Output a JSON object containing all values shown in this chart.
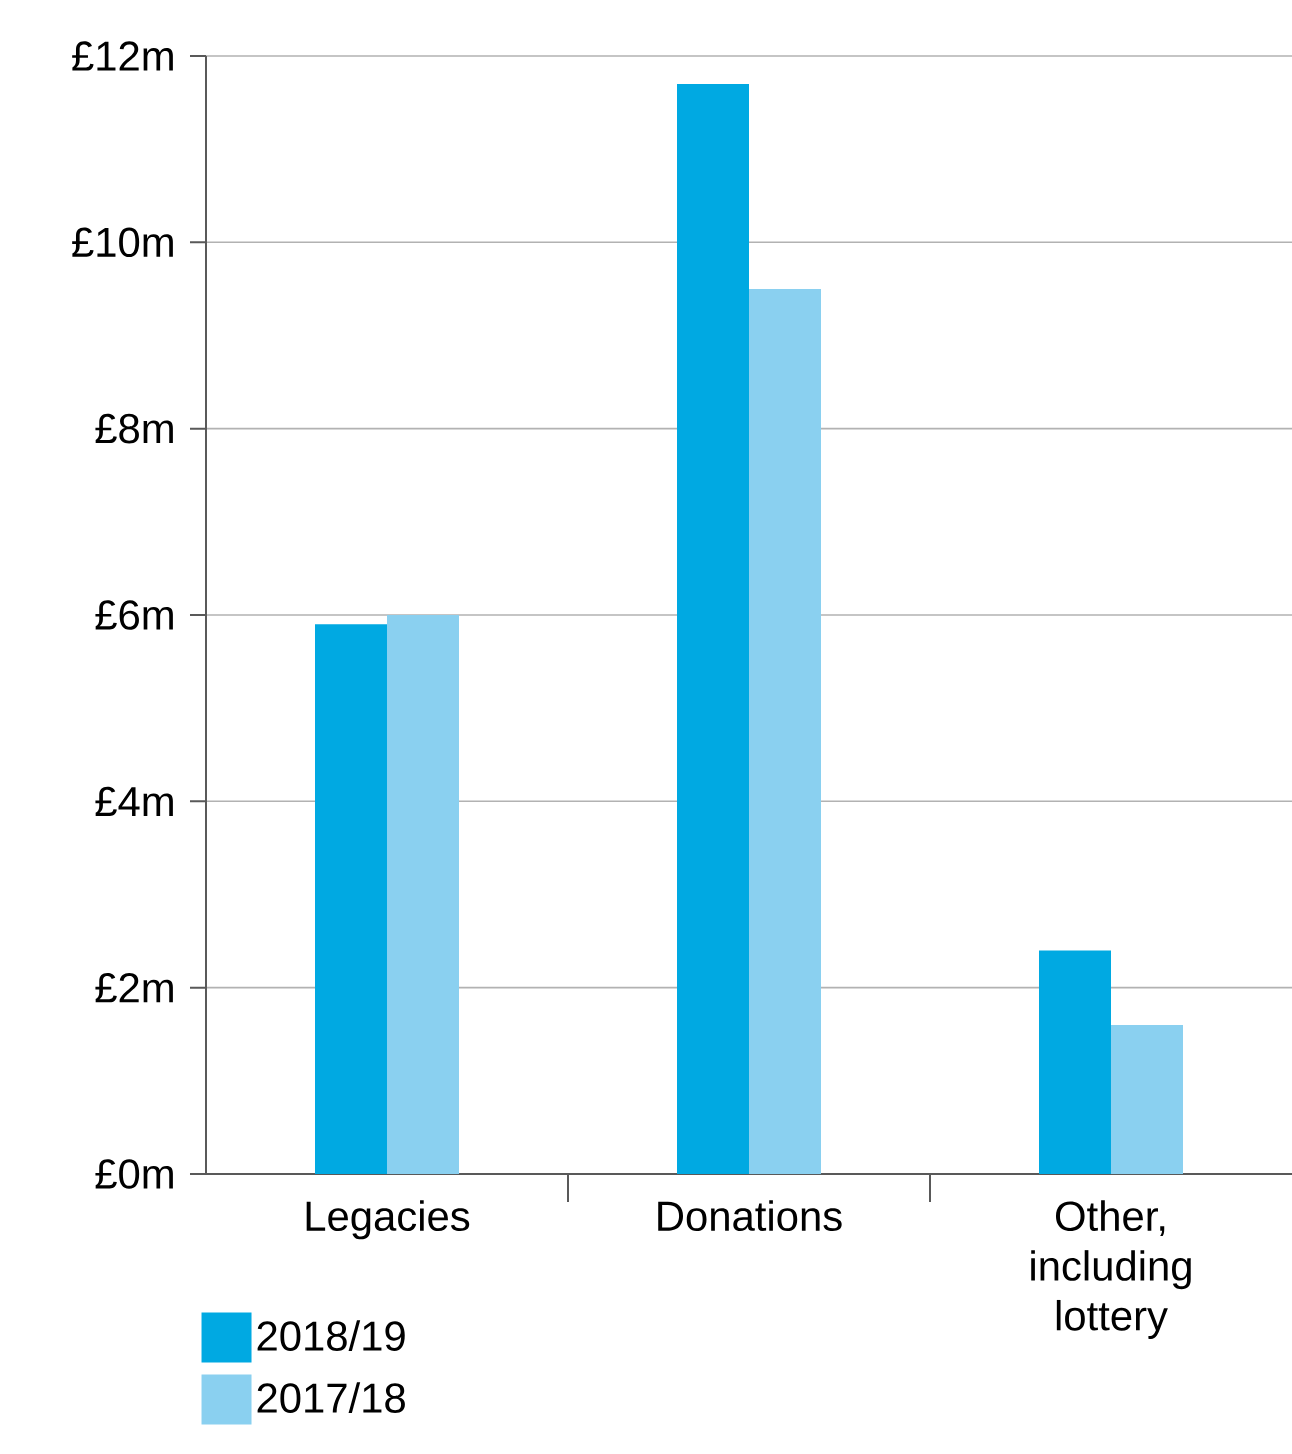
{
  "chart_data": {
    "type": "bar",
    "categories": [
      "Legacies",
      "Donations",
      "Other, including lottery"
    ],
    "series": [
      {
        "name": "2018/19",
        "color": "#00a9e2",
        "values": [
          5.9,
          11.7,
          2.4
        ]
      },
      {
        "name": "2017/18",
        "color": "#8ad0f0",
        "values": [
          6.0,
          9.5,
          1.6
        ]
      }
    ],
    "ylim": [
      0,
      12
    ],
    "yticks": [
      {
        "value": 0,
        "label": "£0m"
      },
      {
        "value": 2,
        "label": "£2m"
      },
      {
        "value": 4,
        "label": "£4m"
      },
      {
        "value": 6,
        "label": "£6m"
      },
      {
        "value": 8,
        "label": "£8m"
      },
      {
        "value": 10,
        "label": "£10m"
      },
      {
        "value": 12,
        "label": "£12m"
      }
    ],
    "grid": "y",
    "legend": "bottom left"
  }
}
